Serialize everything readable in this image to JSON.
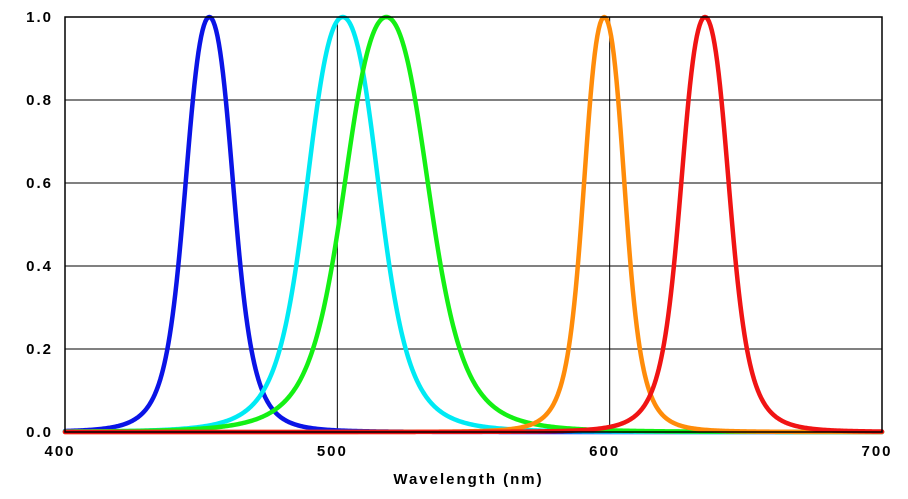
{
  "chart_data": {
    "type": "line",
    "title": "",
    "xlabel": "Wavelength (nm)",
    "ylabel": "",
    "xlim": [
      400,
      700
    ],
    "ylim": [
      0,
      1
    ],
    "x_ticks": [
      400,
      500,
      600,
      700
    ],
    "x_tick_labels": [
      "400",
      "500",
      "600",
      "700"
    ],
    "y_ticks": [
      0,
      0.2,
      0.4,
      0.6,
      0.8,
      1.0
    ],
    "y_tick_labels": [
      "0.0",
      "0.2",
      "0.4",
      "0.6",
      "0.8",
      "1.0"
    ],
    "grid": {
      "horizontal": true,
      "vertical": [
        500,
        600
      ]
    },
    "legend": "none",
    "series": [
      {
        "color": "#0a14e6",
        "peak": 453,
        "fwhm": 20,
        "points": [
          [
            400,
            0.0
          ],
          [
            420,
            0.02
          ],
          [
            430,
            0.08
          ],
          [
            440,
            0.3
          ],
          [
            445,
            0.55
          ],
          [
            450,
            0.9
          ],
          [
            453,
            1.0
          ],
          [
            456,
            0.95
          ],
          [
            460,
            0.75
          ],
          [
            465,
            0.5
          ],
          [
            470,
            0.3
          ],
          [
            480,
            0.13
          ],
          [
            490,
            0.06
          ],
          [
            500,
            0.03
          ],
          [
            520,
            0.01
          ],
          [
            550,
            0.0
          ],
          [
            700,
            0.0
          ]
        ]
      },
      {
        "color": "#00eaf4",
        "peak": 502,
        "fwhm": 30,
        "points": [
          [
            440,
            0.0
          ],
          [
            460,
            0.01
          ],
          [
            480,
            0.1
          ],
          [
            490,
            0.4
          ],
          [
            495,
            0.7
          ],
          [
            500,
            0.95
          ],
          [
            502,
            1.0
          ],
          [
            505,
            0.97
          ],
          [
            510,
            0.85
          ],
          [
            520,
            0.5
          ],
          [
            530,
            0.28
          ],
          [
            540,
            0.15
          ],
          [
            560,
            0.05
          ],
          [
            580,
            0.02
          ],
          [
            600,
            0.0
          ],
          [
            700,
            0.0
          ]
        ]
      },
      {
        "color": "#14f014",
        "peak": 518,
        "fwhm": 35,
        "points": [
          [
            460,
            0.0
          ],
          [
            480,
            0.03
          ],
          [
            490,
            0.1
          ],
          [
            500,
            0.45
          ],
          [
            510,
            0.85
          ],
          [
            518,
            1.0
          ],
          [
            525,
            0.92
          ],
          [
            530,
            0.77
          ],
          [
            540,
            0.55
          ],
          [
            550,
            0.35
          ],
          [
            560,
            0.2
          ],
          [
            580,
            0.08
          ],
          [
            600,
            0.03
          ],
          [
            620,
            0.01
          ],
          [
            700,
            0.0
          ]
        ]
      },
      {
        "color": "#ff8c0a",
        "peak": 598,
        "fwhm": 17,
        "points": [
          [
            400,
            0.0
          ],
          [
            550,
            0.0
          ],
          [
            570,
            0.05
          ],
          [
            580,
            0.15
          ],
          [
            590,
            0.6
          ],
          [
            595,
            0.9
          ],
          [
            598,
            1.0
          ],
          [
            601,
            0.93
          ],
          [
            605,
            0.7
          ],
          [
            610,
            0.4
          ],
          [
            620,
            0.13
          ],
          [
            630,
            0.04
          ],
          [
            640,
            0.01
          ],
          [
            700,
            0.0
          ]
        ]
      },
      {
        "color": "#f01414",
        "peak": 635,
        "fwhm": 20,
        "points": [
          [
            580,
            0.0
          ],
          [
            600,
            0.02
          ],
          [
            610,
            0.06
          ],
          [
            620,
            0.25
          ],
          [
            625,
            0.5
          ],
          [
            630,
            0.85
          ],
          [
            635,
            1.0
          ],
          [
            640,
            0.9
          ],
          [
            645,
            0.65
          ],
          [
            650,
            0.35
          ],
          [
            660,
            0.1
          ],
          [
            670,
            0.02
          ],
          [
            680,
            0.0
          ],
          [
            700,
            0.0
          ]
        ]
      }
    ]
  }
}
